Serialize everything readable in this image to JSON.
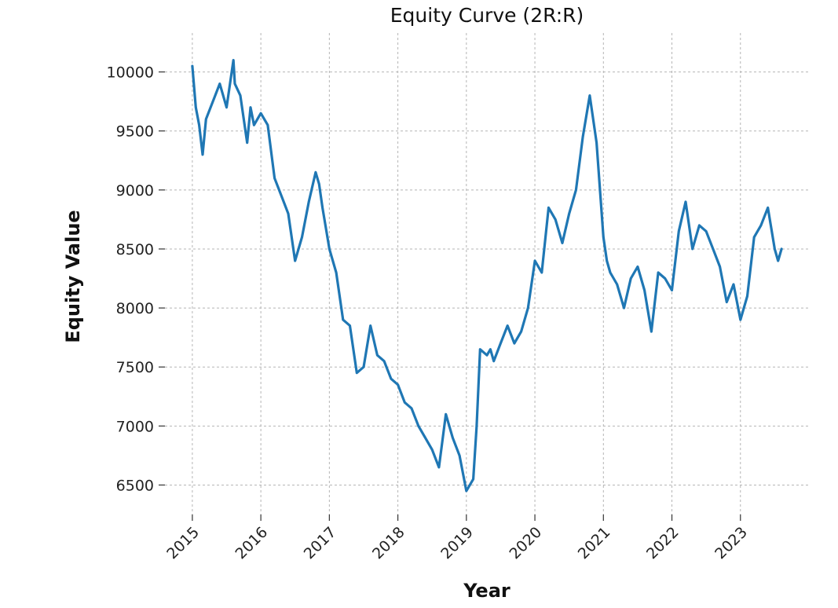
{
  "chart_data": {
    "type": "line",
    "title": "Equity Curve (2R:R)",
    "xlabel": "Year",
    "ylabel": "Equity Value",
    "xlim": [
      2014.6,
      2024.0
    ],
    "ylim": [
      6250,
      10330
    ],
    "x_ticks": [
      2015,
      2016,
      2017,
      2018,
      2019,
      2020,
      2021,
      2022,
      2023
    ],
    "x_tick_labels": [
      "2015",
      "2016",
      "2017",
      "2018",
      "2019",
      "2020",
      "2021",
      "2022",
      "2023"
    ],
    "y_ticks": [
      6500,
      7000,
      7500,
      8000,
      8500,
      9000,
      9500,
      10000
    ],
    "y_tick_labels": [
      "6500",
      "7000",
      "7500",
      "8000",
      "8500",
      "9000",
      "9500",
      "10000"
    ],
    "grid": true,
    "series": [
      {
        "color": "#1f77b4",
        "x": [
          2015.0,
          2015.05,
          2015.1,
          2015.15,
          2015.2,
          2015.3,
          2015.4,
          2015.5,
          2015.6,
          2015.62,
          2015.7,
          2015.8,
          2015.85,
          2015.9,
          2016.0,
          2016.1,
          2016.2,
          2016.3,
          2016.4,
          2016.5,
          2016.6,
          2016.7,
          2016.8,
          2016.85,
          2016.9,
          2017.0,
          2017.1,
          2017.2,
          2017.3,
          2017.4,
          2017.5,
          2017.6,
          2017.7,
          2017.8,
          2017.9,
          2018.0,
          2018.1,
          2018.2,
          2018.3,
          2018.4,
          2018.5,
          2018.6,
          2018.7,
          2018.8,
          2018.9,
          2019.0,
          2019.1,
          2019.15,
          2019.2,
          2019.3,
          2019.35,
          2019.4,
          2019.5,
          2019.6,
          2019.7,
          2019.8,
          2019.9,
          2020.0,
          2020.1,
          2020.2,
          2020.3,
          2020.4,
          2020.5,
          2020.6,
          2020.7,
          2020.8,
          2020.9,
          2021.0,
          2021.05,
          2021.1,
          2021.2,
          2021.3,
          2021.4,
          2021.5,
          2021.6,
          2021.7,
          2021.8,
          2021.9,
          2022.0,
          2022.1,
          2022.2,
          2022.3,
          2022.4,
          2022.5,
          2022.6,
          2022.7,
          2022.8,
          2022.9,
          2023.0,
          2023.1,
          2023.2,
          2023.3,
          2023.4,
          2023.5,
          2023.55,
          2023.6
        ],
        "y": [
          10050,
          9700,
          9550,
          9300,
          9600,
          9750,
          9900,
          9700,
          10100,
          9900,
          9800,
          9400,
          9700,
          9550,
          9650,
          9550,
          9100,
          8950,
          8800,
          8400,
          8600,
          8900,
          9150,
          9050,
          8850,
          8500,
          8300,
          7900,
          7850,
          7450,
          7500,
          7850,
          7600,
          7550,
          7400,
          7350,
          7200,
          7150,
          7000,
          6900,
          6800,
          6650,
          7100,
          6900,
          6750,
          6450,
          6550,
          7000,
          7650,
          7600,
          7650,
          7550,
          7700,
          7850,
          7700,
          7800,
          8000,
          8400,
          8300,
          8850,
          8750,
          8550,
          8800,
          9000,
          9450,
          9800,
          9400,
          8600,
          8400,
          8300,
          8200,
          8000,
          8250,
          8350,
          8150,
          7800,
          8300,
          8250,
          8150,
          8650,
          8900,
          8500,
          8700,
          8650,
          8500,
          8350,
          8050,
          8200,
          7900,
          8100,
          8600,
          8700,
          8850,
          8500,
          8400,
          8500
        ]
      }
    ]
  }
}
